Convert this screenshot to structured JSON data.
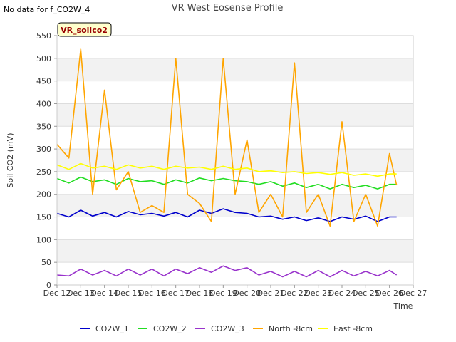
{
  "no_data_note": "No data for f_CO2W_4",
  "site_badge": "VR_soilco2",
  "chart_data": {
    "type": "line",
    "title": "VR West Eosense Profile",
    "xlabel": "Time",
    "ylabel": "Soil CO2 (mV)",
    "xlim": [
      "2000-12-12",
      "2000-12-27"
    ],
    "ylim": [
      0,
      550
    ],
    "x_ticks": [
      "Dec 12",
      "Dec 13",
      "Dec 14",
      "Dec 15",
      "Dec 16",
      "Dec 17",
      "Dec 18",
      "Dec 19",
      "Dec 20",
      "Dec 21",
      "Dec 22",
      "Dec 23",
      "Dec 24",
      "Dec 25",
      "Dec 26",
      "Dec 27"
    ],
    "y_ticks": [
      0,
      50,
      100,
      150,
      200,
      250,
      300,
      350,
      400,
      450,
      500,
      550
    ],
    "grid": true,
    "legend_position": "bottom",
    "x": [
      "Dec 12",
      "Dec 12.5",
      "Dec 13",
      "Dec 13.5",
      "Dec 14",
      "Dec 14.5",
      "Dec 15",
      "Dec 15.5",
      "Dec 16",
      "Dec 16.5",
      "Dec 17",
      "Dec 17.5",
      "Dec 18",
      "Dec 18.5",
      "Dec 19",
      "Dec 19.5",
      "Dec 20",
      "Dec 20.5",
      "Dec 21",
      "Dec 21.5",
      "Dec 22",
      "Dec 22.5",
      "Dec 23",
      "Dec 23.5",
      "Dec 24",
      "Dec 24.5",
      "Dec 25",
      "Dec 25.5",
      "Dec 26",
      "Dec 26.3"
    ],
    "series": [
      {
        "name": "CO2W_1",
        "color": "#0000cc",
        "values": [
          158,
          150,
          165,
          152,
          160,
          150,
          162,
          155,
          158,
          152,
          160,
          150,
          165,
          158,
          168,
          160,
          158,
          150,
          152,
          145,
          150,
          142,
          148,
          140,
          150,
          145,
          152,
          140,
          150,
          150
        ]
      },
      {
        "name": "CO2W_2",
        "color": "#22dd22",
        "values": [
          235,
          225,
          238,
          228,
          232,
          222,
          235,
          228,
          230,
          222,
          232,
          225,
          236,
          230,
          235,
          230,
          228,
          222,
          228,
          218,
          225,
          215,
          222,
          212,
          222,
          215,
          220,
          212,
          222,
          222
        ]
      },
      {
        "name": "CO2W_3",
        "color": "#9933cc",
        "values": [
          22,
          20,
          35,
          22,
          32,
          20,
          35,
          22,
          35,
          20,
          35,
          25,
          38,
          28,
          42,
          32,
          38,
          22,
          30,
          18,
          30,
          18,
          32,
          18,
          32,
          20,
          30,
          20,
          32,
          22
        ]
      },
      {
        "name": "North -8cm",
        "color": "#ffa500",
        "values": [
          310,
          280,
          520,
          200,
          430,
          210,
          250,
          160,
          175,
          160,
          500,
          200,
          180,
          140,
          500,
          200,
          320,
          160,
          200,
          150,
          490,
          160,
          200,
          130,
          360,
          140,
          200,
          130,
          290,
          220
        ]
      },
      {
        "name": "East -8cm",
        "color": "#ffff00",
        "values": [
          265,
          255,
          268,
          258,
          262,
          255,
          265,
          258,
          262,
          255,
          262,
          258,
          260,
          255,
          262,
          255,
          258,
          250,
          252,
          248,
          250,
          246,
          248,
          244,
          248,
          242,
          245,
          240,
          245,
          245
        ]
      }
    ]
  }
}
